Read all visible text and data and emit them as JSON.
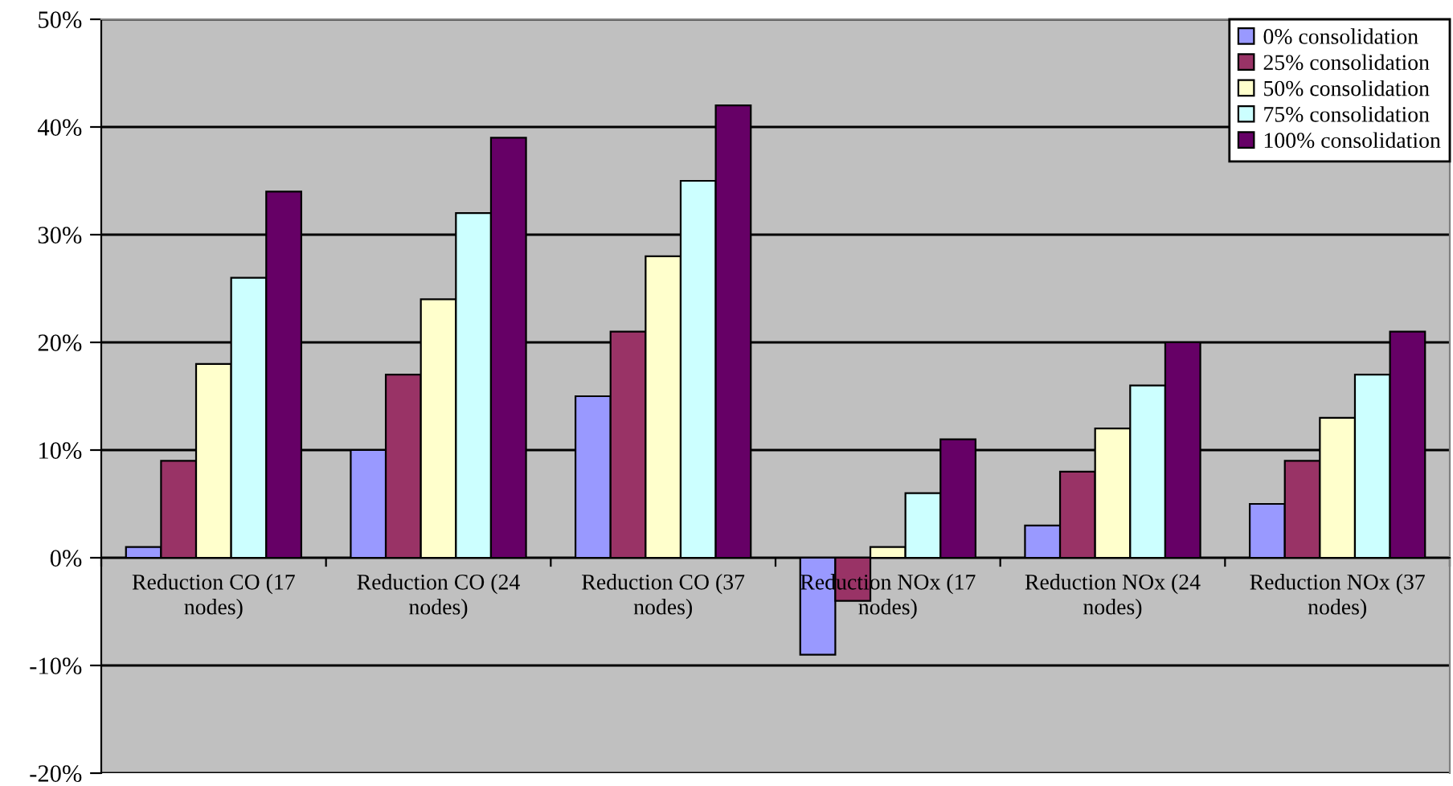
{
  "chart_data": {
    "type": "bar",
    "categories": [
      "Reduction CO (17 nodes)",
      "Reduction CO (24 nodes)",
      "Reduction CO (37 nodes)",
      "Reduction NOx (17 nodes)",
      "Reduction NOx (24 nodes)",
      "Reduction NOx (37 nodes)"
    ],
    "series": [
      {
        "name": "0% consolidation",
        "color": "#9999ff",
        "values": [
          1,
          10,
          15,
          -9,
          3,
          5
        ]
      },
      {
        "name": "25% consolidation",
        "color": "#993366",
        "values": [
          9,
          17,
          21,
          -4,
          8,
          9
        ]
      },
      {
        "name": "50% consolidation",
        "color": "#ffffcc",
        "values": [
          18,
          24,
          28,
          1,
          12,
          13
        ]
      },
      {
        "name": "75% consolidation",
        "color": "#ccffff",
        "values": [
          26,
          32,
          35,
          6,
          16,
          17
        ]
      },
      {
        "name": "100% consolidation",
        "color": "#660066",
        "values": [
          34,
          39,
          42,
          11,
          20,
          21
        ]
      }
    ],
    "ylim": [
      -20,
      50
    ],
    "yticks": [
      {
        "value": -20,
        "label": "-20%"
      },
      {
        "value": -10,
        "label": "-10%"
      },
      {
        "value": 0,
        "label": "0%"
      },
      {
        "value": 10,
        "label": "10%"
      },
      {
        "value": 20,
        "label": "20%"
      },
      {
        "value": 30,
        "label": "30%"
      },
      {
        "value": 40,
        "label": "40%"
      },
      {
        "value": 50,
        "label": "50%"
      }
    ],
    "grid": "y",
    "legend": "top right"
  }
}
